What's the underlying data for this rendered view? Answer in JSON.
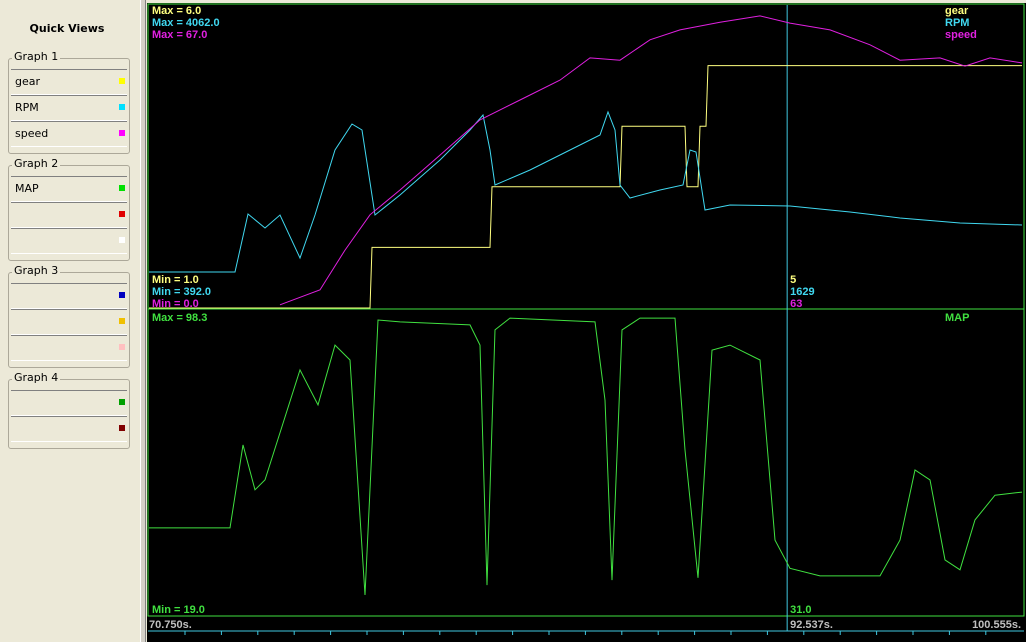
{
  "sidebar": {
    "title": "Quick Views",
    "groups": [
      {
        "title": "Graph 1",
        "items": [
          {
            "label": "gear",
            "color": "#ffff00"
          },
          {
            "label": "RPM",
            "color": "#00e0ff"
          },
          {
            "label": "speed",
            "color": "#ff00ff"
          }
        ]
      },
      {
        "title": "Graph 2",
        "items": [
          {
            "label": "MAP",
            "color": "#00e000"
          },
          {
            "color": "#e00000"
          },
          {
            "color": "#ffffff"
          }
        ]
      },
      {
        "title": "Graph 3",
        "items": [
          {
            "color": "#0000c0"
          },
          {
            "color": "#f0c000"
          },
          {
            "color": "#ffc0c0"
          }
        ]
      },
      {
        "title": "Graph 4",
        "items": [
          {
            "color": "#00a000"
          },
          {
            "color": "#800000"
          }
        ]
      }
    ]
  },
  "time": {
    "start": {
      "value": 70.75,
      "label": "70.750s."
    },
    "end": {
      "value": 100.555,
      "label": "100.555s."
    },
    "cursor": {
      "value": 92.537,
      "label": "92.537s."
    }
  },
  "graphs": [
    {
      "series": [
        {
          "name": "gear",
          "color": "#ffff80",
          "max": {
            "value": 6,
            "label": "Max = 6.0"
          },
          "min": {
            "value": 1,
            "label": "Min = 1.0"
          },
          "readout": "5",
          "x": [
            70.75,
            78.295,
            78.363,
            82.392,
            82.46,
            86.83,
            86.898,
            89.049,
            89.117,
            89.493,
            89.561,
            89.766,
            89.834,
            100.555
          ],
          "values": [
            1,
            1,
            2,
            2,
            3,
            3,
            4,
            4,
            3,
            3,
            4,
            4,
            5,
            5
          ]
        },
        {
          "name": "RPM",
          "color": "#40d8f0",
          "max": {
            "value": 4062,
            "label": "Max = 4062.0"
          },
          "min": {
            "value": 392,
            "label": "Min = 392.0"
          },
          "readout": "1629",
          "x": [
            70.75,
            73.686,
            74.13,
            74.71,
            75.222,
            75.905,
            76.417,
            77.1,
            77.681,
            78.022,
            78.466,
            79.319,
            80.685,
            81.709,
            82.153,
            82.392,
            82.563,
            83.758,
            85.123,
            86.148,
            86.421,
            86.66,
            86.83,
            87.172,
            88.196,
            88.981,
            89.22,
            89.425,
            89.732,
            90.586,
            92.634,
            94.683,
            96.39,
            98.438,
            100.555
          ],
          "values": [
            828,
            828,
            1531,
            1361,
            1518,
            998,
            1518,
            2306,
            2621,
            2548,
            1518,
            1761,
            2185,
            2548,
            2730,
            2306,
            1882,
            2063,
            2306,
            2487,
            2766,
            2548,
            1882,
            1724,
            1821,
            1882,
            2306,
            2281,
            1579,
            1640,
            1627,
            1555,
            1482,
            1422,
            1397
          ]
        },
        {
          "name": "speed",
          "color": "#e020e0",
          "max": {
            "value": 67,
            "label": "Max = 67.0"
          },
          "min": {
            "value": 0,
            "label": "Min = 0.0"
          },
          "readout": "63",
          "x": [
            75.222,
            76.588,
            77.442,
            78.295,
            79.319,
            80.685,
            82.051,
            83.416,
            84.782,
            85.806,
            86.83,
            87.855,
            88.879,
            90.245,
            91.61,
            92.634,
            94.0,
            95.366,
            96.39,
            97.756,
            98.609,
            99.463,
            100.555
          ],
          "values": [
            0.7,
            4.0,
            12.8,
            20.6,
            26.1,
            33.8,
            41.6,
            46.0,
            50.4,
            55.3,
            54.8,
            59.3,
            61.5,
            63.2,
            64.6,
            63.0,
            61.5,
            58.2,
            54.8,
            55.3,
            53.5,
            55.3,
            54.2
          ]
        }
      ]
    },
    {
      "series": [
        {
          "name": "MAP",
          "color": "#40e040",
          "max": {
            "value": 98.3,
            "label": "Max = 98.3"
          },
          "min": {
            "value": 19,
            "label": "Min = 19.0"
          },
          "readout": "31.0",
          "x": [
            70.75,
            73.515,
            73.959,
            74.369,
            74.71,
            75.905,
            76.52,
            77.1,
            77.612,
            78.124,
            78.568,
            79.319,
            81.709,
            82.051,
            82.29,
            82.563,
            83.075,
            85.977,
            86.318,
            86.557,
            86.899,
            87.513,
            88.708,
            89.05,
            89.493,
            89.971,
            90.586,
            91.61,
            92.122,
            92.634,
            93.659,
            95.707,
            96.39,
            96.902,
            97.414,
            97.926,
            98.438,
            98.95,
            99.633,
            100.555
          ],
          "values": [
            41.6,
            41.6,
            63.4,
            51.6,
            54.2,
            83.1,
            73.9,
            89.6,
            85.7,
            24.0,
            96.2,
            95.7,
            94.9,
            89.6,
            26.6,
            93.6,
            96.7,
            95.7,
            75.2,
            27.9,
            93.6,
            96.7,
            96.7,
            62.1,
            28.5,
            88.3,
            89.6,
            85.7,
            38.4,
            31.0,
            29.0,
            29.0,
            38.4,
            56.8,
            54.2,
            33.2,
            30.6,
            43.7,
            50.2,
            51.0
          ]
        }
      ]
    }
  ]
}
